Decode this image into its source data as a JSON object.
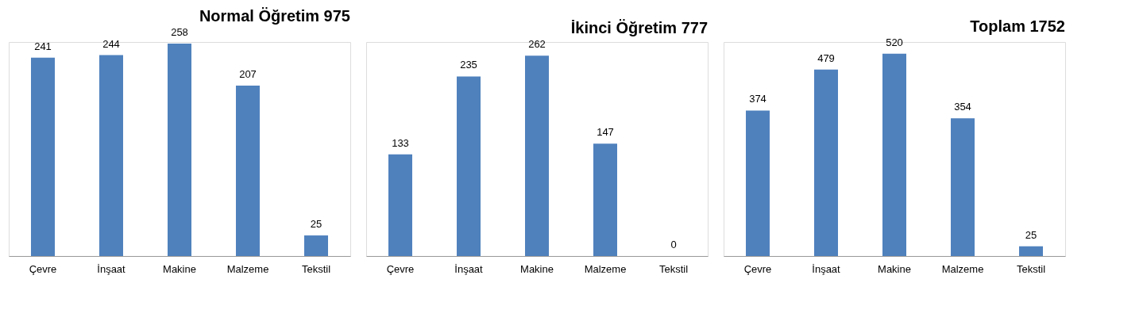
{
  "chart_data": [
    {
      "type": "bar",
      "title": "Normal Öğretim 975",
      "categories": [
        "Çevre",
        "İnşaat",
        "Makine",
        "Malzeme",
        "Tekstil"
      ],
      "values": [
        241,
        244,
        258,
        207,
        25
      ],
      "color": "#4f81bd",
      "data_labels": true
    },
    {
      "type": "bar",
      "title": "İkinci Öğretim  777",
      "categories": [
        "Çevre",
        "İnşaat",
        "Makine",
        "Malzeme",
        "Tekstil"
      ],
      "values": [
        133,
        235,
        262,
        147,
        0
      ],
      "color": "#4f81bd",
      "data_labels": true
    },
    {
      "type": "bar",
      "title": "Toplam 1752",
      "categories": [
        "Çevre",
        "İnşaat",
        "Makine",
        "Malzeme",
        "Tekstil"
      ],
      "values": [
        374,
        479,
        520,
        354,
        25
      ],
      "color": "#4f81bd",
      "data_labels": true
    }
  ]
}
